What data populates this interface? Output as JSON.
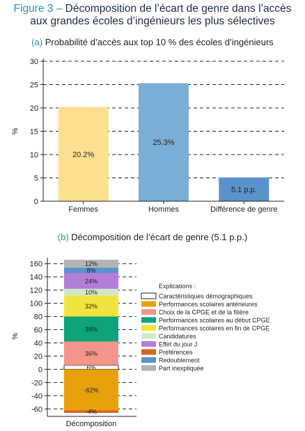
{
  "figure": {
    "number_label": "Figure 3 –",
    "title_line1": "Décomposition de l’écart de genre dans l’accès",
    "title_line2": "aux grandes écoles d’ingénieurs les plus sélectives"
  },
  "chart_data": [
    {
      "type": "bar",
      "panel_tag": "(a)",
      "title": "Probabilité d’accès aux top 10 % des écoles d’ingénieurs",
      "ylabel": "%",
      "ylim": [
        0,
        30
      ],
      "yticks": [
        0,
        5,
        10,
        15,
        20,
        25,
        30
      ],
      "grid": "dashed horizontal",
      "categories": [
        "Femmes",
        "Hommes",
        "Différence de genre"
      ],
      "values": [
        20.2,
        25.3,
        5.1
      ],
      "data_labels": [
        "20.2%",
        "25.3%",
        "5.1 p.p."
      ],
      "colors": [
        "#fde08f",
        "#7aaed6",
        "#5b92cc"
      ]
    },
    {
      "type": "bar",
      "stacked": true,
      "panel_tag": "(b)",
      "title": "Décomposition de l’écart de genre (5.1 p.p.)",
      "ylabel": "%",
      "ylim": [
        -65,
        165
      ],
      "yticks": [
        -60,
        -40,
        -20,
        0,
        20,
        40,
        60,
        80,
        100,
        120,
        140,
        160
      ],
      "grid": "dashed horizontal",
      "categories": [
        "Décomposition"
      ],
      "legend_title": "Explications :",
      "legend_position": "right",
      "series": [
        {
          "name": "Caractéristiques démographiques",
          "value": 6,
          "label": "6%",
          "color": "#ffffff"
        },
        {
          "name": "Performances scolaires antérieures",
          "value": -62,
          "label": "-62%",
          "color": "#e8a10a"
        },
        {
          "name": "Choix de la CPGE et de la filière",
          "value": 36,
          "label": "36%",
          "color": "#f4948a"
        },
        {
          "name": "Performances scolaires au début CPGE",
          "value": 38,
          "label": "38%",
          "color": "#0fa37a"
        },
        {
          "name": "Performances scolaires en fin de CPGE",
          "value": 32,
          "label": "32%",
          "color": "#f2e43e"
        },
        {
          "name": "Candidatures",
          "value": 10,
          "label": "10%",
          "color": "#cfe9c8"
        },
        {
          "name": "Effet du jour J",
          "value": 24,
          "label": "24%",
          "color": "#b27ed9"
        },
        {
          "name": "Préférences",
          "value": -4,
          "label": "-4%",
          "color": "#d7641e"
        },
        {
          "name": "Redoublement",
          "value": 8,
          "label": "8%",
          "color": "#5b92cc"
        },
        {
          "name": "Part inexpliquée",
          "value": 12,
          "label": "12%",
          "color": "#b3b3b3"
        }
      ]
    }
  ]
}
